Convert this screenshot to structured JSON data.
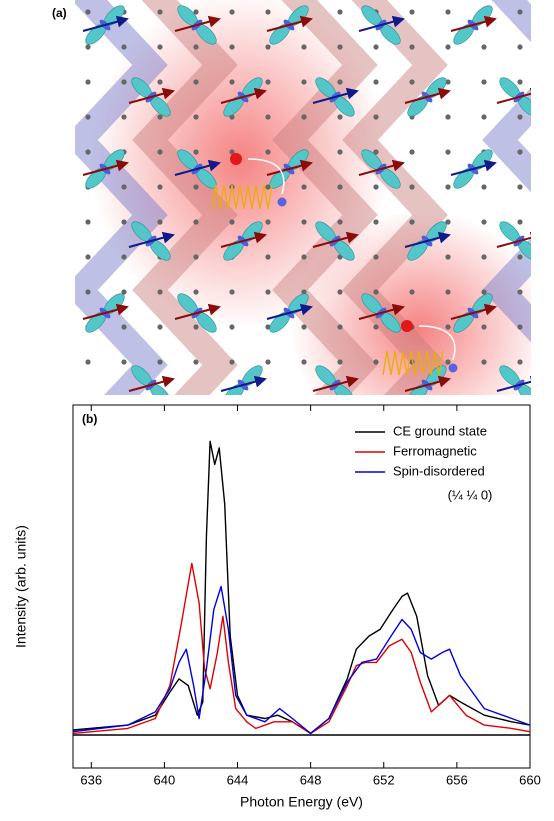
{
  "illustration": {
    "label": "(a)"
  },
  "chart_data": {
    "type": "line",
    "panel_label": "(b)",
    "x_label": "Photon Energy (eV)",
    "y_label": "Intensity (arb. units)",
    "annotation": "(¼ ¼ 0)",
    "xlim": [
      635,
      660
    ],
    "xticks": [
      636,
      640,
      644,
      648,
      652,
      656,
      660
    ],
    "ylim": [
      -0.1,
      1.0
    ],
    "legend": "upper right",
    "series": [
      {
        "name": "CE ground state",
        "color": "#000000",
        "x": [
          635,
          638,
          639.5,
          640.3,
          640.8,
          641.3,
          641.8,
          642.1,
          642.3,
          642.5,
          642.75,
          643.0,
          643.3,
          643.6,
          644,
          644.5,
          645.5,
          646.2,
          647,
          648,
          649,
          650,
          650.5,
          651.2,
          651.8,
          652.5,
          653,
          653.3,
          653.8,
          654.4,
          655,
          655.6,
          656.2,
          657.5,
          659,
          660
        ],
        "values": [
          0.015,
          0.03,
          0.06,
          0.13,
          0.17,
          0.15,
          0.06,
          0.1,
          0.6,
          0.89,
          0.82,
          0.87,
          0.7,
          0.3,
          0.12,
          0.06,
          0.05,
          0.06,
          0.04,
          0.005,
          0.05,
          0.17,
          0.26,
          0.3,
          0.32,
          0.38,
          0.42,
          0.43,
          0.36,
          0.18,
          0.09,
          0.12,
          0.1,
          0.06,
          0.04,
          0.03
        ]
      },
      {
        "name": "Ferromagnetic",
        "color": "#e00000",
        "x": [
          635,
          638,
          639.5,
          640.3,
          640.9,
          641.5,
          641.9,
          642.2,
          642.5,
          642.9,
          643.2,
          643.5,
          643.9,
          644.5,
          645,
          646,
          647,
          648,
          649,
          650,
          650.5,
          651,
          651.6,
          652.3,
          653,
          653.5,
          654,
          654.6,
          655.2,
          655.6,
          656.5,
          657.5,
          659,
          660
        ],
        "values": [
          0.005,
          0.02,
          0.05,
          0.15,
          0.33,
          0.52,
          0.4,
          0.2,
          0.14,
          0.25,
          0.36,
          0.22,
          0.08,
          0.04,
          0.02,
          0.04,
          0.04,
          0.005,
          0.04,
          0.15,
          0.21,
          0.22,
          0.22,
          0.27,
          0.29,
          0.25,
          0.16,
          0.07,
          0.1,
          0.12,
          0.06,
          0.03,
          0.02,
          0.01
        ]
      },
      {
        "name": "Spin-disordered",
        "color": "#0000e0",
        "x": [
          635,
          638,
          639.5,
          640.3,
          640.8,
          641.2,
          641.6,
          641.9,
          642.3,
          642.7,
          643.1,
          643.5,
          643.9,
          644.5,
          645.5,
          646.3,
          647,
          648,
          649,
          650,
          650.8,
          651.6,
          652.4,
          653,
          653.5,
          654,
          654.6,
          655.2,
          655.6,
          656.2,
          657.5,
          659,
          660
        ],
        "values": [
          0.01,
          0.03,
          0.07,
          0.14,
          0.22,
          0.26,
          0.15,
          0.05,
          0.2,
          0.38,
          0.45,
          0.32,
          0.12,
          0.06,
          0.04,
          0.08,
          0.05,
          0.005,
          0.05,
          0.16,
          0.22,
          0.23,
          0.3,
          0.35,
          0.32,
          0.25,
          0.23,
          0.25,
          0.26,
          0.18,
          0.08,
          0.05,
          0.03
        ]
      }
    ]
  }
}
